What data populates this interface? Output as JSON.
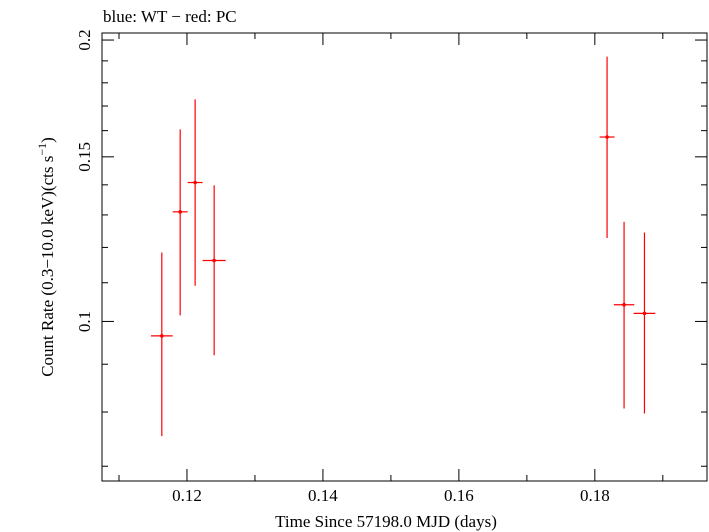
{
  "chart_data": {
    "type": "scatter",
    "title": "blue: WT − red: PC",
    "xlabel": "Time Since 57198.0 MJD (days)",
    "ylabel_main": "Count Rate (0.3−10.0 keV)(cts s",
    "ylabel_sup": "−1",
    "ylabel_close": ")",
    "xlim": [
      0.1075,
      0.1965
    ],
    "ylim": [
      0.0675,
      0.2035
    ],
    "y_scale": "log",
    "grid": false,
    "x_ticks": [
      {
        "value": 0.12,
        "label": "0.12"
      },
      {
        "value": 0.14,
        "label": "0.14"
      },
      {
        "value": 0.16,
        "label": "0.16"
      },
      {
        "value": 0.18,
        "label": "0.18"
      }
    ],
    "x_minor_ticks": [
      0.11,
      0.13,
      0.15,
      0.17,
      0.19
    ],
    "y_ticks": [
      {
        "value": 0.1,
        "label": "0.1"
      },
      {
        "value": 0.15,
        "label": "0.15"
      },
      {
        "value": 0.2,
        "label": "0.2"
      }
    ],
    "y_minor_ticks": [
      0.07,
      0.08,
      0.09,
      0.11,
      0.12,
      0.13,
      0.14,
      0.16,
      0.17,
      0.18,
      0.19
    ],
    "series": [
      {
        "color": "#ff0000",
        "points": [
          {
            "x": 0.1163,
            "y": 0.0965,
            "xerr": 0.0016,
            "ylo": 0.0754,
            "yhi": 0.1185
          },
          {
            "x": 0.119,
            "y": 0.131,
            "xerr": 0.0011,
            "ylo": 0.1015,
            "yhi": 0.1605
          },
          {
            "x": 0.1212,
            "y": 0.1408,
            "xerr": 0.0011,
            "ylo": 0.1092,
            "yhi": 0.1728
          },
          {
            "x": 0.124,
            "y": 0.1162,
            "xerr": 0.0017,
            "ylo": 0.092,
            "yhi": 0.1398
          },
          {
            "x": 0.1818,
            "y": 0.1575,
            "xerr": 0.0011,
            "ylo": 0.1228,
            "yhi": 0.192
          },
          {
            "x": 0.1843,
            "y": 0.1042,
            "xerr": 0.0015,
            "ylo": 0.0807,
            "yhi": 0.1278
          },
          {
            "x": 0.1873,
            "y": 0.102,
            "xerr": 0.0016,
            "ylo": 0.0797,
            "yhi": 0.1245
          }
        ]
      }
    ]
  }
}
